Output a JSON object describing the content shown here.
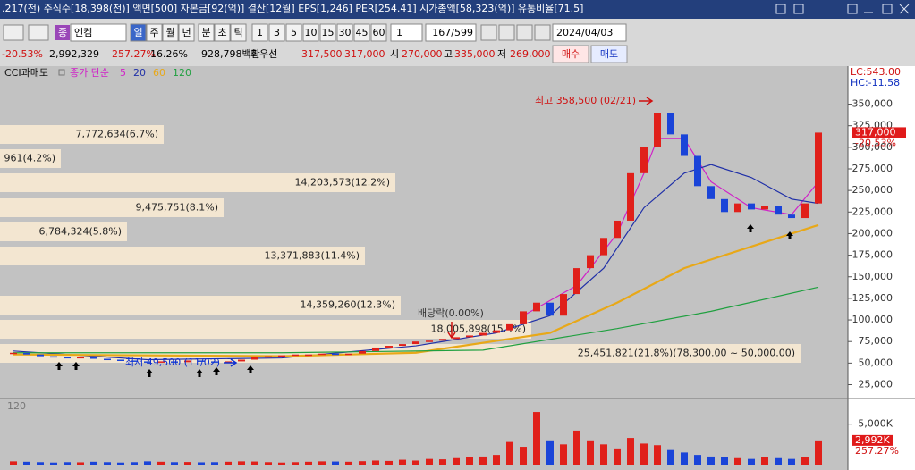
{
  "title_bar": {
    "text": ".217(천) 주식수[18,398(천)] 액면[500] 자본금[92(억)] 결산[12월] EPS[1,246] PER[254.41] 시가총액[58,323(억)] 유통비율[71.5]"
  },
  "toolbar": {
    "code_tag": "종",
    "stock_name": "엔켐",
    "periods": [
      "일",
      "주",
      "월",
      "년",
      "분",
      "초",
      "틱"
    ],
    "intervals": [
      "1",
      "3",
      "5",
      "10",
      "15",
      "30",
      "45",
      "60"
    ],
    "count": "1",
    "position": "167/599",
    "date": "2024/04/03"
  },
  "quote_bar": {
    "items": [
      {
        "text": "-20.53%",
        "color": "#d01010"
      },
      {
        "text": "2,992,329",
        "color": "#000000"
      },
      {
        "text": "257.27%",
        "color": "#d01010"
      },
      {
        "text": "16.26%",
        "color": "#000000"
      },
      {
        "text": "928,798백만",
        "color": "#000000"
      },
      {
        "text": "최우선",
        "color": "#000000"
      },
      {
        "text": "317,500",
        "color": "#d01010"
      },
      {
        "text": "317,000",
        "color": "#d01010"
      },
      {
        "text": "시",
        "color": "#000000"
      },
      {
        "text": "270,000",
        "color": "#d01010"
      },
      {
        "text": "고",
        "color": "#000000"
      },
      {
        "text": "335,000",
        "color": "#d01010"
      },
      {
        "text": "저",
        "color": "#000000"
      },
      {
        "text": "269,000",
        "color": "#d01010"
      }
    ],
    "buttons": [
      {
        "text": "매수",
        "color": "#d01010"
      },
      {
        "text": "매도",
        "color": "#1030c0"
      }
    ]
  },
  "chart_data": {
    "type": "candlestick",
    "indicator": "CCI과매도",
    "ma_prefix": "종가 단순",
    "lc": "LC:543.00",
    "hc": "HC:-11.58",
    "up_color": "#e0201a",
    "down_color": "#1a44d8",
    "values": [
      62000,
      60000,
      58000,
      57000,
      56000,
      57000,
      55000,
      54000,
      53000,
      52000,
      51000,
      52000,
      51000,
      53000,
      52000,
      51000,
      52000,
      54000,
      57000,
      58000,
      59000,
      60000,
      60000,
      61000,
      60000,
      61000,
      64000,
      68000,
      70000,
      72000,
      75000,
      76000,
      78000,
      80000,
      82000,
      85000,
      88000,
      95000,
      110000,
      120000,
      105000,
      130000,
      160000,
      175000,
      195000,
      215000,
      270000,
      300000,
      340000,
      315000,
      290000,
      255000,
      240000,
      225000,
      235000,
      228000,
      232000,
      222000,
      218000,
      235000,
      317000
    ],
    "volumes": [
      400,
      350,
      300,
      250,
      300,
      280,
      350,
      300,
      250,
      300,
      400,
      350,
      300,
      320,
      280,
      300,
      350,
      400,
      380,
      300,
      250,
      300,
      350,
      400,
      380,
      350,
      420,
      500,
      450,
      600,
      500,
      700,
      650,
      800,
      900,
      1000,
      1200,
      2800,
      2200,
      6500,
      3000,
      2500,
      4200,
      3000,
      2500,
      2000,
      3300,
      2600,
      2400,
      1800,
      1500,
      1200,
      1000,
      900,
      800,
      700,
      900,
      800,
      700,
      900,
      2992
    ],
    "volume_label": "2,992K",
    "series": [
      {
        "name": "5",
        "color": "#d020c8",
        "x": [
          38,
          42,
          45,
          47,
          48,
          50,
          52,
          55,
          58,
          60
        ],
        "values": [
          105000,
          140000,
          200000,
          270000,
          310000,
          310000,
          260000,
          230000,
          222000,
          260000
        ]
      },
      {
        "name": "20",
        "color": "#2030a8",
        "x": [
          0,
          10,
          20,
          30,
          36,
          40,
          44,
          47,
          50,
          52,
          55,
          58,
          60
        ],
        "values": [
          64000,
          54000,
          56000,
          70000,
          85000,
          105000,
          160000,
          230000,
          270000,
          280000,
          265000,
          240000,
          235000
        ]
      },
      {
        "name": "60",
        "color": "#e8a818",
        "x": [
          0,
          20,
          30,
          40,
          45,
          50,
          55,
          60
        ],
        "values": [
          60000,
          58000,
          62000,
          85000,
          120000,
          160000,
          185000,
          210000
        ]
      },
      {
        "name": "120",
        "color": "#20a040",
        "x": [
          0,
          20,
          35,
          45,
          52,
          60
        ],
        "values": [
          62000,
          62000,
          65000,
          90000,
          110000,
          138000
        ]
      }
    ],
    "ylim": [
      10000,
      393000
    ],
    "yticks": [
      {
        "value": 25000,
        "label": "25,000"
      },
      {
        "value": 50000,
        "label": "50,000"
      },
      {
        "value": 75000,
        "label": "75,000"
      },
      {
        "value": 100000,
        "label": "100,000"
      },
      {
        "value": 125000,
        "label": "125,000"
      },
      {
        "value": 150000,
        "label": "150,000"
      },
      {
        "value": 175000,
        "label": "175,000"
      },
      {
        "value": 200000,
        "label": "200,000"
      },
      {
        "value": 225000,
        "label": "225,000"
      },
      {
        "value": 250000,
        "label": "250,000"
      },
      {
        "value": 275000,
        "label": "275,000"
      },
      {
        "value": 300000,
        "label": "300,000"
      },
      {
        "value": 325000,
        "label": "325,000"
      },
      {
        "value": 350000,
        "label": "350,000"
      }
    ],
    "vlim": [
      0,
      7500
    ],
    "vticks": [
      {
        "value": 5000,
        "label": "5,000K"
      }
    ],
    "annotations": [
      {
        "text": "최고 358,500 (02/21)",
        "color": "#d01010"
      },
      {
        "text": "최저 49,500 (11/02)",
        "color": "#1030d0"
      },
      {
        "text": "배당락(0.00%)",
        "color": "#333333"
      }
    ],
    "profile": [
      "7,772,634(6.7%)",
      "961(4.2%)",
      "14,203,573(12.2%)",
      "9,475,751(8.1%)",
      "6,784,324(5.8%)",
      "13,371,883(11.4%)",
      "14,359,260(12.3%)",
      "18,005,898(15.4%)",
      "25,451,821(21.8%)(78,300.00 ~ 50,000.00)"
    ]
  }
}
